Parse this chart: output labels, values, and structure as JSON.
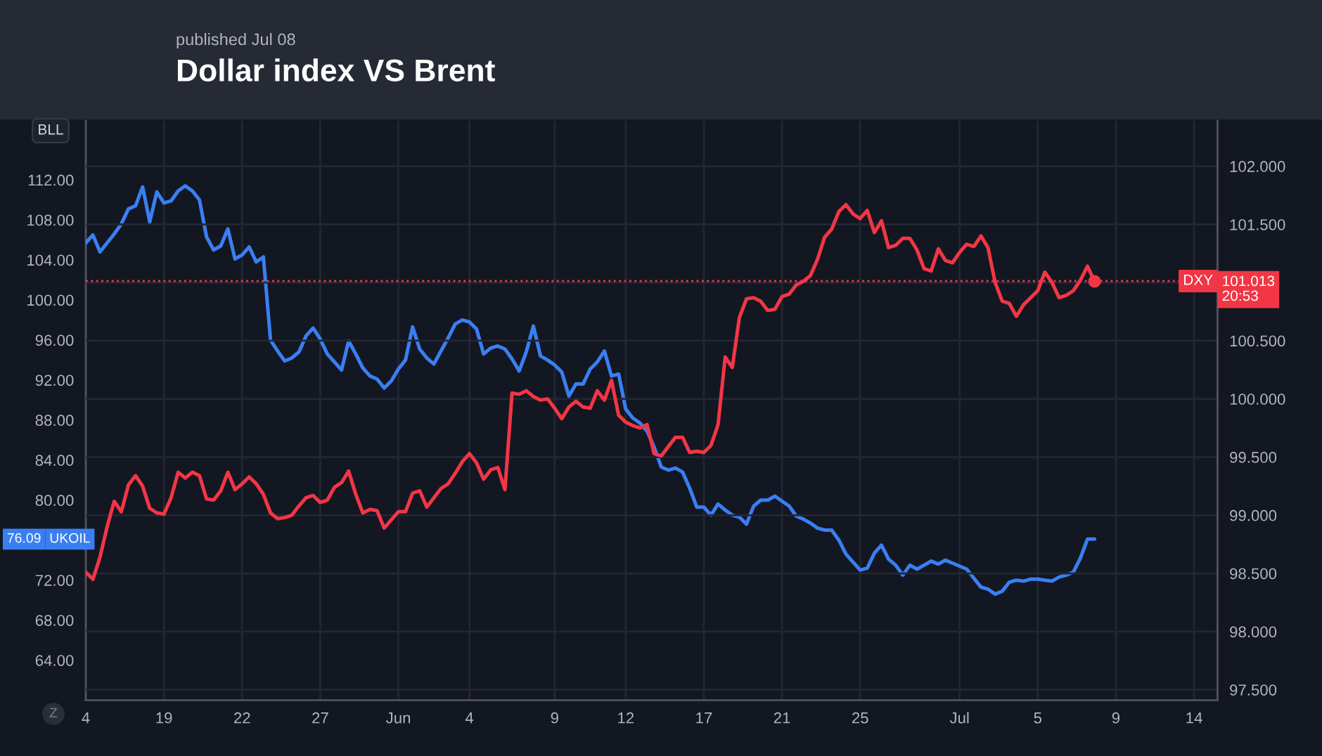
{
  "chart_data": {
    "type": "line",
    "title": "Dollar index VS Brent",
    "subtitle": "published Jul 08",
    "ylabel": "BLL",
    "categories": [
      "4",
      null,
      null,
      null,
      null,
      null,
      null,
      null,
      null,
      null,
      null,
      "19",
      null,
      null,
      null,
      null,
      null,
      null,
      null,
      null,
      null,
      null,
      "22",
      null,
      null,
      null,
      null,
      null,
      null,
      null,
      null,
      null,
      null,
      "27",
      null,
      null,
      null,
      null,
      null,
      null,
      null,
      null,
      null,
      null,
      "Jun",
      null,
      null,
      null,
      null,
      null,
      null,
      null,
      null,
      null,
      "4",
      null,
      null,
      null,
      null,
      null,
      null,
      null,
      null,
      null,
      null,
      null,
      "9",
      null,
      null,
      null,
      null,
      null,
      null,
      null,
      null,
      null,
      "12",
      null,
      null,
      null,
      null,
      null,
      null,
      null,
      null,
      null,
      null,
      "17",
      null,
      null,
      null,
      null,
      null,
      null,
      null,
      null,
      null,
      null,
      "21",
      null,
      null,
      null,
      null,
      null,
      null,
      null,
      null,
      null,
      null,
      "25",
      null,
      null,
      null,
      null,
      null,
      null,
      null,
      null,
      null,
      null,
      null,
      null,
      null,
      "Jul",
      null,
      null,
      null,
      null,
      null,
      null,
      null,
      null,
      null,
      null,
      "5",
      null,
      null,
      null,
      null,
      null,
      null,
      null,
      null,
      null,
      null,
      "9",
      null,
      null,
      null,
      null,
      null,
      null,
      null,
      null,
      null,
      null,
      "14",
      null,
      null,
      null
    ],
    "series": [
      {
        "name": "UKOIL",
        "color": "#3a7ff2",
        "axis": "y",
        "values": [
          105.7,
          106.5,
          104.8,
          105.7,
          106.6,
          107.6,
          109.1,
          109.4,
          111.3,
          107.8,
          110.8,
          109.7,
          109.9,
          110.9,
          111.4,
          110.9,
          110.0,
          106.3,
          105.0,
          105.4,
          107.1,
          104.1,
          104.5,
          105.3,
          103.8,
          104.3,
          96.0,
          94.9,
          93.9,
          94.2,
          94.8,
          96.4,
          97.2,
          96.1,
          94.6,
          93.8,
          93.0,
          95.9,
          94.6,
          93.2,
          92.4,
          92.1,
          91.2,
          91.9,
          93.1,
          94.0,
          97.3,
          95.1,
          94.2,
          93.6,
          94.9,
          96.2,
          97.6,
          98.0,
          97.8,
          97.1,
          94.6,
          95.2,
          95.4,
          95.1,
          94.1,
          92.9,
          94.8,
          97.4,
          94.4,
          94.0,
          93.5,
          92.8,
          90.4,
          91.6,
          91.6,
          93.1,
          93.8,
          94.9,
          92.4,
          92.6,
          89.1,
          88.2,
          87.7,
          86.9,
          85.3,
          83.3,
          83.0,
          83.2,
          82.8,
          81.2,
          79.3,
          79.3,
          78.5,
          79.6,
          79.0,
          78.5,
          78.3,
          77.6,
          79.4,
          80.0,
          80.0,
          80.4,
          79.9,
          79.4,
          78.4,
          78.1,
          77.7,
          77.2,
          77.0,
          77.0,
          76.0,
          74.6,
          73.8,
          73.0,
          73.2,
          74.7,
          75.5,
          74.1,
          73.5,
          72.5,
          73.5,
          73.1,
          73.5,
          73.9,
          73.6,
          74.0,
          73.7,
          73.4,
          73.1,
          72.2,
          71.3,
          71.1,
          70.6,
          70.9,
          71.8,
          72.0,
          71.9,
          72.1,
          72.1,
          72.0,
          71.9,
          72.3,
          72.5,
          72.8,
          74.2,
          76.1,
          76.1,
          null,
          null,
          null,
          null,
          null,
          null,
          null,
          null,
          null,
          null,
          null,
          null,
          null,
          null,
          null,
          null,
          null
        ]
      },
      {
        "name": "DXY",
        "color": "#f23645",
        "axis": "y2",
        "values": [
          98.51,
          98.45,
          98.64,
          98.9,
          99.12,
          99.03,
          99.26,
          99.34,
          99.25,
          99.06,
          99.02,
          99.01,
          99.15,
          99.37,
          99.32,
          99.37,
          99.34,
          99.14,
          99.13,
          99.21,
          99.37,
          99.22,
          99.27,
          99.33,
          99.27,
          99.18,
          99.02,
          98.97,
          98.98,
          99.0,
          99.08,
          99.15,
          99.17,
          99.11,
          99.13,
          99.24,
          99.28,
          99.38,
          99.18,
          99.02,
          99.05,
          99.04,
          98.89,
          98.96,
          99.03,
          99.03,
          99.19,
          99.21,
          99.07,
          99.15,
          99.23,
          99.27,
          99.36,
          99.46,
          99.53,
          99.45,
          99.31,
          99.39,
          99.41,
          99.22,
          100.05,
          100.04,
          100.07,
          100.02,
          99.99,
          100.0,
          99.92,
          99.83,
          99.93,
          99.98,
          99.93,
          99.92,
          100.07,
          99.99,
          100.16,
          99.86,
          99.8,
          99.77,
          99.75,
          99.78,
          99.53,
          99.51,
          99.59,
          99.67,
          99.67,
          99.54,
          99.55,
          99.54,
          99.6,
          99.78,
          100.36,
          100.27,
          100.7,
          100.86,
          100.87,
          100.84,
          100.76,
          100.77,
          100.88,
          100.9,
          100.98,
          101.01,
          101.06,
          101.2,
          101.39,
          101.46,
          101.61,
          101.67,
          101.59,
          101.55,
          101.62,
          101.43,
          101.53,
          101.3,
          101.32,
          101.38,
          101.38,
          101.28,
          101.12,
          101.1,
          101.29,
          101.19,
          101.17,
          101.26,
          101.33,
          101.31,
          101.4,
          101.3,
          101.0,
          100.84,
          100.82,
          100.71,
          100.81,
          100.87,
          100.93,
          101.09,
          101.0,
          100.87,
          100.89,
          100.93,
          101.02,
          101.14,
          101.01,
          null,
          null,
          null,
          null,
          null,
          null,
          null,
          null,
          null,
          null,
          null,
          null,
          null,
          null,
          null,
          null,
          null
        ]
      },
      {
        "type": "scatter",
        "color": "#f23645",
        "axis": "y2",
        "marker": "circle",
        "values": [
          null,
          null,
          null,
          null,
          null,
          null,
          null,
          null,
          null,
          null,
          null,
          null,
          null,
          null,
          null,
          null,
          null,
          null,
          null,
          null,
          null,
          null,
          null,
          null,
          null,
          null,
          null,
          null,
          null,
          null,
          null,
          null,
          null,
          null,
          null,
          null,
          null,
          null,
          null,
          null,
          null,
          null,
          null,
          null,
          null,
          null,
          null,
          null,
          null,
          null,
          null,
          null,
          null,
          null,
          null,
          null,
          null,
          null,
          null,
          null,
          null,
          null,
          null,
          null,
          null,
          null,
          null,
          null,
          null,
          null,
          null,
          null,
          null,
          null,
          null,
          null,
          null,
          null,
          null,
          null,
          null,
          null,
          null,
          null,
          null,
          null,
          null,
          null,
          null,
          null,
          null,
          null,
          null,
          null,
          null,
          null,
          null,
          null,
          null,
          null,
          null,
          null,
          null,
          null,
          null,
          null,
          null,
          null,
          null,
          null,
          null,
          null,
          null,
          null,
          null,
          null,
          null,
          null,
          null,
          null,
          null,
          null,
          null,
          null,
          null,
          null,
          null,
          null,
          null,
          null,
          null,
          null,
          null,
          null,
          null,
          null,
          null,
          null,
          null,
          null,
          null,
          null,
          101.01,
          null,
          null,
          null,
          null,
          null,
          null,
          null,
          null,
          null,
          null,
          null,
          null,
          null,
          null,
          null,
          null,
          null
        ]
      }
    ],
    "ylim": [
      60,
      117.9
    ],
    "yticks": [
      {
        "value": 64,
        "label": "64.00"
      },
      {
        "value": 68,
        "label": "68.00"
      },
      {
        "value": 72,
        "label": "72.00"
      },
      {
        "value": 80,
        "label": "80.00"
      },
      {
        "value": 84,
        "label": "84.00"
      },
      {
        "value": 88,
        "label": "88.00"
      },
      {
        "value": 92,
        "label": "92.00"
      },
      {
        "value": 96,
        "label": "96.00"
      },
      {
        "value": 100,
        "label": "100.00"
      },
      {
        "value": 104,
        "label": "104.00"
      },
      {
        "value": 108,
        "label": "108.00"
      },
      {
        "value": 112,
        "label": "112.00"
      }
    ],
    "y2lim": [
      97.41,
      102.39
    ],
    "y2ticks": [
      {
        "value": 97.5,
        "label": "97.500"
      },
      {
        "value": 98,
        "label": "98.000"
      },
      {
        "value": 98.5,
        "label": "98.500"
      },
      {
        "value": 99,
        "label": "99.000"
      },
      {
        "value": 99.5,
        "label": "99.500"
      },
      {
        "value": 100,
        "label": "100.000"
      },
      {
        "value": 100.5,
        "label": "100.500"
      },
      {
        "value": 101,
        "label": null
      },
      {
        "value": 101.5,
        "label": "101.500"
      },
      {
        "value": 102,
        "label": "102.000"
      }
    ],
    "grid": true,
    "ref_lines": [
      {
        "axis": "y2",
        "value": 101.013,
        "label": "101.013\n20:53",
        "color": "#f23645",
        "line_style": "dotted"
      }
    ],
    "annotations": [
      "76.09",
      "Z"
    ]
  }
}
